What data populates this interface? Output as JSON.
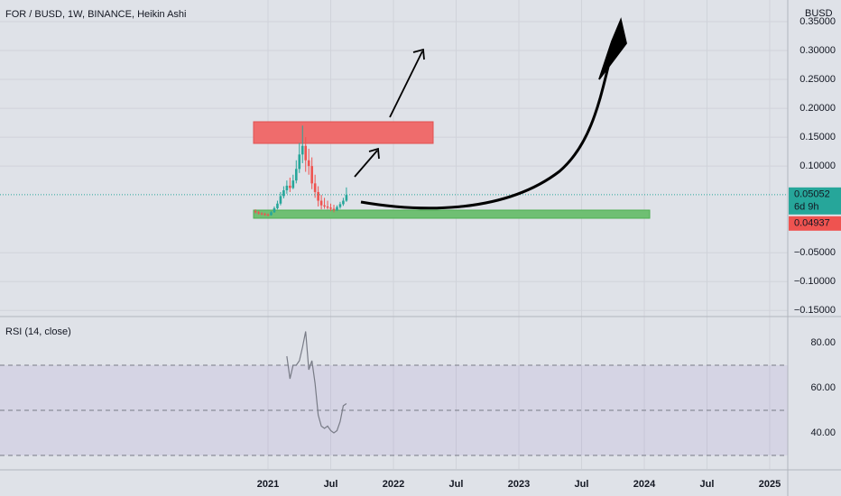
{
  "chart_data": [
    {
      "type": "candlestick",
      "title": "FOR / BUSD, 1W, BINANCE, Heikin Ashi",
      "unit_label": "BUSD",
      "candles": {
        "x": [
          2020.9,
          2020.925,
          2020.95,
          2020.975,
          2021.0,
          2021.025,
          2021.05,
          2021.075,
          2021.1,
          2021.125,
          2021.15,
          2021.175,
          2021.2,
          2021.225,
          2021.25,
          2021.275,
          2021.3,
          2021.325,
          2021.35,
          2021.375,
          2021.4,
          2021.425,
          2021.45,
          2021.475,
          2021.5,
          2021.525,
          2021.55,
          2021.575,
          2021.6,
          2021.625
        ],
        "open": [
          0.022,
          0.02,
          0.018,
          0.017,
          0.016,
          0.015,
          0.02,
          0.027,
          0.035,
          0.048,
          0.058,
          0.066,
          0.062,
          0.075,
          0.095,
          0.12,
          0.135,
          0.11,
          0.1,
          0.07,
          0.055,
          0.04,
          0.032,
          0.03,
          0.028,
          0.026,
          0.024,
          0.029,
          0.034,
          0.04
        ],
        "high": [
          0.025,
          0.022,
          0.02,
          0.019,
          0.018,
          0.022,
          0.03,
          0.04,
          0.055,
          0.065,
          0.075,
          0.08,
          0.085,
          0.11,
          0.14,
          0.17,
          0.15,
          0.13,
          0.115,
          0.085,
          0.065,
          0.05,
          0.045,
          0.04,
          0.035,
          0.033,
          0.032,
          0.038,
          0.045,
          0.063
        ],
        "low": [
          0.018,
          0.016,
          0.015,
          0.014,
          0.013,
          0.014,
          0.019,
          0.025,
          0.032,
          0.044,
          0.052,
          0.055,
          0.06,
          0.07,
          0.088,
          0.105,
          0.09,
          0.085,
          0.06,
          0.045,
          0.03,
          0.025,
          0.026,
          0.025,
          0.022,
          0.02,
          0.022,
          0.026,
          0.031,
          0.038
        ],
        "close": [
          0.02,
          0.018,
          0.017,
          0.016,
          0.015,
          0.02,
          0.027,
          0.035,
          0.048,
          0.058,
          0.066,
          0.062,
          0.075,
          0.095,
          0.12,
          0.135,
          0.11,
          0.1,
          0.07,
          0.055,
          0.04,
          0.032,
          0.03,
          0.028,
          0.026,
          0.024,
          0.029,
          0.034,
          0.04,
          0.05
        ]
      },
      "up_color": "#26a69a",
      "down_color": "#ef5350",
      "xlim": [
        2018.863,
        2025.144
      ],
      "xticks": [
        2021,
        {
          "value": 2021.5,
          "label": "Jul"
        },
        2022,
        {
          "value": 2022.5,
          "label": "Jul"
        },
        2023,
        {
          "value": 2023.5,
          "label": "Jul"
        },
        2024,
        {
          "value": 2024.5,
          "label": "Jul"
        },
        2025
      ],
      "ylim": [
        -0.159,
        0.3875
      ],
      "yticks": [
        {
          "value": 0.35,
          "label": "0.35000"
        },
        {
          "value": 0.3,
          "label": "0.30000"
        },
        {
          "value": 0.25,
          "label": "0.25000"
        },
        {
          "value": 0.2,
          "label": "0.20000"
        },
        {
          "value": 0.15,
          "label": "0.15000"
        },
        {
          "value": 0.1,
          "label": "0.10000"
        },
        {
          "value": -0.05,
          "label": "−0.05000"
        },
        {
          "value": -0.1,
          "label": "−0.10000"
        },
        {
          "value": -0.15,
          "label": "−0.15000"
        }
      ],
      "last_price": {
        "value": 0.05052,
        "label": "0.05052",
        "countdown": "6d 9h",
        "color": "#26a69a"
      },
      "prev_price": {
        "value": 0.04937,
        "label": "0.04937",
        "color": "#ef5350"
      },
      "grid": true
    },
    {
      "type": "line",
      "title": "RSI (14, close)",
      "x": [
        2021.15,
        2021.175,
        2021.2,
        2021.225,
        2021.25,
        2021.275,
        2021.3,
        2021.325,
        2021.35,
        2021.375,
        2021.4,
        2021.425,
        2021.45,
        2021.475,
        2021.5,
        2021.525,
        2021.55,
        2021.575,
        2021.6,
        2021.625
      ],
      "values": [
        74,
        64,
        70,
        70,
        72,
        78,
        85,
        68,
        72,
        62,
        48,
        43,
        42,
        43,
        41,
        40,
        41,
        45,
        52,
        53
      ],
      "color": "#787b86",
      "ylim": [
        24,
        91.2
      ],
      "yticks": [
        {
          "value": 80,
          "label": "80.00"
        },
        {
          "value": 60,
          "label": "60.00"
        },
        {
          "value": 40,
          "label": "40.00"
        }
      ],
      "levels": [
        70,
        50,
        30
      ],
      "band_color": "#7e57c2"
    }
  ]
}
